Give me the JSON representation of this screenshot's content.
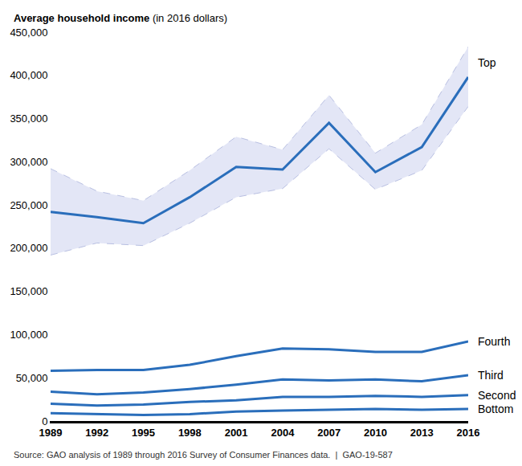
{
  "chart_data": {
    "type": "line",
    "title": "Average household income",
    "subtitle": "(in 2016 dollars)",
    "source": "Source: GAO analysis of 1989 through 2016 Survey of Consumer Finances data.  |  GAO-19-587",
    "x": [
      1989,
      1992,
      1995,
      1998,
      2001,
      2004,
      2007,
      2010,
      2013,
      2016
    ],
    "xlim": [
      1989,
      2016
    ],
    "xticks": [
      1989,
      1992,
      1995,
      1998,
      2001,
      2004,
      2007,
      2010,
      2013,
      2016
    ],
    "ylim": [
      0,
      450000
    ],
    "yticks": [
      0,
      {
        "value": 50000,
        "label": "50,000"
      },
      {
        "value": 100000,
        "label": "100,000"
      },
      {
        "value": 150000,
        "label": "150,000"
      },
      {
        "value": 200000,
        "label": "200,000"
      },
      {
        "value": 250000,
        "label": "250,000"
      },
      {
        "value": 300000,
        "label": "300,000"
      },
      {
        "value": 350000,
        "label": "350,000"
      },
      {
        "value": 400000,
        "label": "400,000"
      },
      {
        "value": 450000,
        "label": "450,000"
      }
    ],
    "grid": false,
    "series": [
      {
        "name": "Top",
        "color": "#2a6ebb",
        "values": [
          242000,
          236000,
          229000,
          259000,
          294000,
          291000,
          345000,
          288000,
          317000,
          398000
        ],
        "upper": [
          292000,
          266000,
          255000,
          290000,
          329000,
          314000,
          377000,
          310000,
          343000,
          433000
        ],
        "lower": [
          192000,
          206000,
          203000,
          229000,
          259000,
          269000,
          315000,
          268000,
          290000,
          364000
        ]
      },
      {
        "name": "Fourth",
        "color": "#2a6ebb",
        "values": [
          58000,
          59000,
          59000,
          65000,
          75000,
          84000,
          83000,
          80000,
          80000,
          92000
        ]
      },
      {
        "name": "Third",
        "color": "#2a6ebb",
        "values": [
          34000,
          31000,
          33000,
          37000,
          42000,
          48000,
          47000,
          48000,
          46000,
          53000
        ]
      },
      {
        "name": "Second",
        "color": "#2a6ebb",
        "values": [
          20000,
          18000,
          19000,
          22000,
          24000,
          28000,
          28000,
          29000,
          28000,
          30000
        ]
      },
      {
        "name": "Bottom",
        "color": "#2a6ebb",
        "values": [
          9000,
          8000,
          7000,
          8000,
          11000,
          12000,
          13000,
          14000,
          13000,
          14000
        ]
      }
    ]
  }
}
